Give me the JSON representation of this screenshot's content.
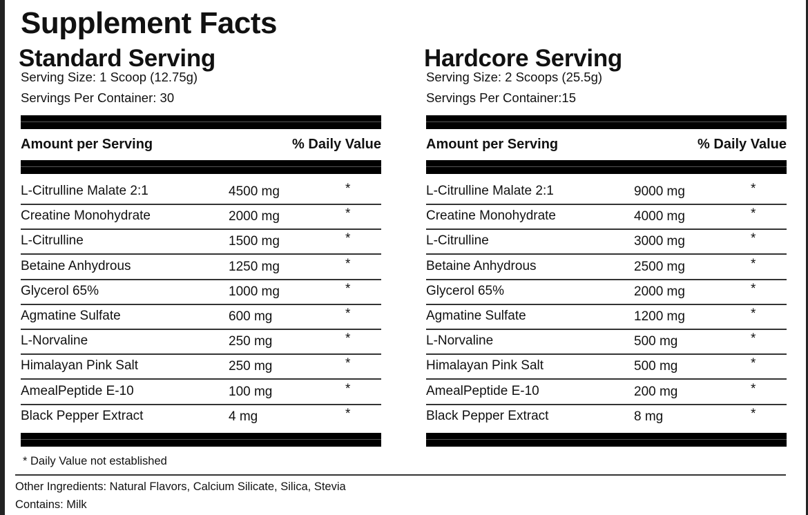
{
  "title": "Supplement Facts",
  "panels": [
    {
      "heading": "Standard Serving",
      "serving_size": "Serving Size: 1 Scoop (12.75g)",
      "servings_per_container": "Servings Per Container: 30",
      "header": {
        "amount": "Amount per Serving",
        "daily_value": "% Daily Value"
      },
      "rows": [
        [
          "L-Citrulline Malate 2:1",
          "4500 mg",
          "*"
        ],
        [
          "Creatine Monohydrate",
          "2000 mg",
          "*"
        ],
        [
          "L-Citrulline",
          "1500 mg",
          "*"
        ],
        [
          "Betaine Anhydrous",
          "1250 mg",
          "*"
        ],
        [
          "Glycerol 65%",
          "1000 mg",
          "*"
        ],
        [
          "Agmatine Sulfate",
          "600 mg",
          "*"
        ],
        [
          "L-Norvaline",
          "250 mg",
          "*"
        ],
        [
          "Himalayan Pink Salt",
          "250 mg",
          "*"
        ],
        [
          "AmealPeptide E-10",
          "100 mg",
          "*"
        ],
        [
          "Black Pepper Extract",
          "4 mg",
          "*"
        ]
      ]
    },
    {
      "heading": "Hardcore Serving",
      "serving_size": "Serving Size: 2 Scoops (25.5g)",
      "servings_per_container": "Servings Per Container:15",
      "header": {
        "amount": "Amount per Serving",
        "daily_value": "% Daily Value"
      },
      "rows": [
        [
          "L-Citrulline Malate 2:1",
          "9000 mg",
          "*"
        ],
        [
          "Creatine Monohydrate",
          "4000 mg",
          "*"
        ],
        [
          "L-Citrulline",
          "3000 mg",
          "*"
        ],
        [
          "Betaine Anhydrous",
          "2500 mg",
          "*"
        ],
        [
          "Glycerol 65%",
          "2000 mg",
          "*"
        ],
        [
          "Agmatine Sulfate",
          "1200 mg",
          "*"
        ],
        [
          "L-Norvaline",
          "500 mg",
          "*"
        ],
        [
          "Himalayan Pink Salt",
          "500 mg",
          "*"
        ],
        [
          "AmealPeptide E-10",
          "200 mg",
          "*"
        ],
        [
          "Black Pepper Extract",
          "8 mg",
          "*"
        ]
      ]
    }
  ],
  "footnote": "* Daily Value not established",
  "other_ingredients": "Other Ingredients: Natural Flavors, Calcium Silicate, Silica, Stevia",
  "contains": "Contains: Milk"
}
